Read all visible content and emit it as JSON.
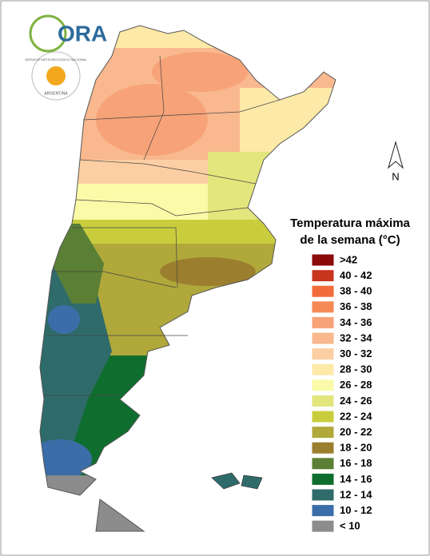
{
  "logo": {
    "name": "ORA",
    "seal_top": "SERVICIO METEOROLÓGICO NACIONAL",
    "seal_bottom": "ARGENTINA"
  },
  "north": "N",
  "legend": {
    "title_lines": [
      "Temperatura máxima",
      "de la semana (°C)"
    ],
    "items": [
      {
        "label": ">42",
        "color": "#8b0a0a"
      },
      {
        "label": "40 - 42",
        "color": "#c8341e"
      },
      {
        "label": "38 - 40",
        "color": "#f26b3a"
      },
      {
        "label": "36 - 38",
        "color": "#f68a57"
      },
      {
        "label": "34 - 36",
        "color": "#f7a278"
      },
      {
        "label": "32 - 34",
        "color": "#f9b88e"
      },
      {
        "label": "30 - 32",
        "color": "#fbcfa3"
      },
      {
        "label": "28 - 30",
        "color": "#fde9a8"
      },
      {
        "label": "26 - 28",
        "color": "#fafaa8"
      },
      {
        "label": "24 - 26",
        "color": "#e3e67c"
      },
      {
        "label": "22 - 24",
        "color": "#c9cd3d"
      },
      {
        "label": "20 - 22",
        "color": "#b0a83a"
      },
      {
        "label": "18 - 20",
        "color": "#9b7f2f"
      },
      {
        "label": "16 - 18",
        "color": "#5a7f35"
      },
      {
        "label": "14 - 16",
        "color": "#0f6e2e"
      },
      {
        "label": "12 - 14",
        "color": "#2f6b6b"
      },
      {
        "label": "10 - 12",
        "color": "#3b6ea8"
      },
      {
        "label": "< 10",
        "color": "#8c8c8c"
      }
    ]
  }
}
